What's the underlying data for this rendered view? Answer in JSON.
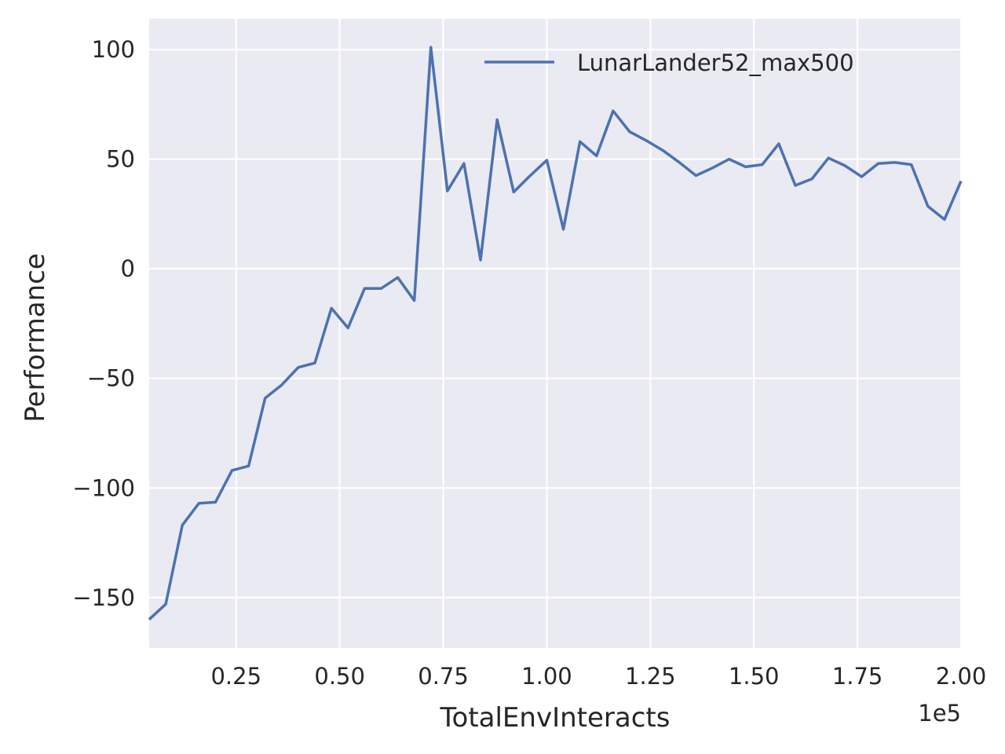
{
  "chart_data": {
    "type": "line",
    "title": "",
    "xlabel": "TotalEnvInteracts",
    "ylabel": "Performance",
    "x_offset_text": "1e5",
    "xlim": [
      0.04,
      2.0
    ],
    "ylim": [
      -173,
      114
    ],
    "xticks": [
      0.25,
      0.5,
      0.75,
      1.0,
      1.25,
      1.5,
      1.75,
      2.0
    ],
    "xtick_labels": [
      "0.25",
      "0.50",
      "0.75",
      "1.00",
      "1.25",
      "1.50",
      "1.75",
      "2.00"
    ],
    "yticks": [
      -150,
      -100,
      -50,
      0,
      50,
      100
    ],
    "ytick_labels": [
      "−150",
      "−100",
      "−50",
      "0",
      "50",
      "100"
    ],
    "grid": true,
    "legend_position": "top-right",
    "colors": {
      "background": "#eaeaf2",
      "grid": "#ffffff",
      "series": "#4c72b0"
    },
    "series": [
      {
        "name": "LunarLander52_max500",
        "x": [
          0.04,
          0.08,
          0.12,
          0.16,
          0.2,
          0.24,
          0.28,
          0.32,
          0.36,
          0.4,
          0.44,
          0.48,
          0.52,
          0.56,
          0.6,
          0.64,
          0.68,
          0.72,
          0.76,
          0.8,
          0.84,
          0.88,
          0.92,
          0.96,
          1.0,
          1.04,
          1.08,
          1.12,
          1.16,
          1.2,
          1.24,
          1.28,
          1.32,
          1.36,
          1.4,
          1.44,
          1.48,
          1.52,
          1.56,
          1.6,
          1.64,
          1.68,
          1.72,
          1.76,
          1.8,
          1.84,
          1.88,
          1.92,
          1.96,
          2.0
        ],
        "values": [
          -160,
          -153,
          -117,
          -107,
          -106.5,
          -92,
          -90,
          -59,
          -53,
          -45,
          -43,
          -18,
          -27,
          -9,
          -9,
          -4,
          -14.5,
          101,
          35.5,
          48,
          4,
          68,
          35,
          42.5,
          49.5,
          18,
          58,
          51.5,
          72,
          62.5,
          58.5,
          54,
          48.5,
          42.5,
          46,
          50,
          46.5,
          47.5,
          57,
          38,
          41,
          50.5,
          47,
          42,
          48,
          48.5,
          47.5,
          28.5,
          22.5,
          40
        ]
      }
    ]
  }
}
